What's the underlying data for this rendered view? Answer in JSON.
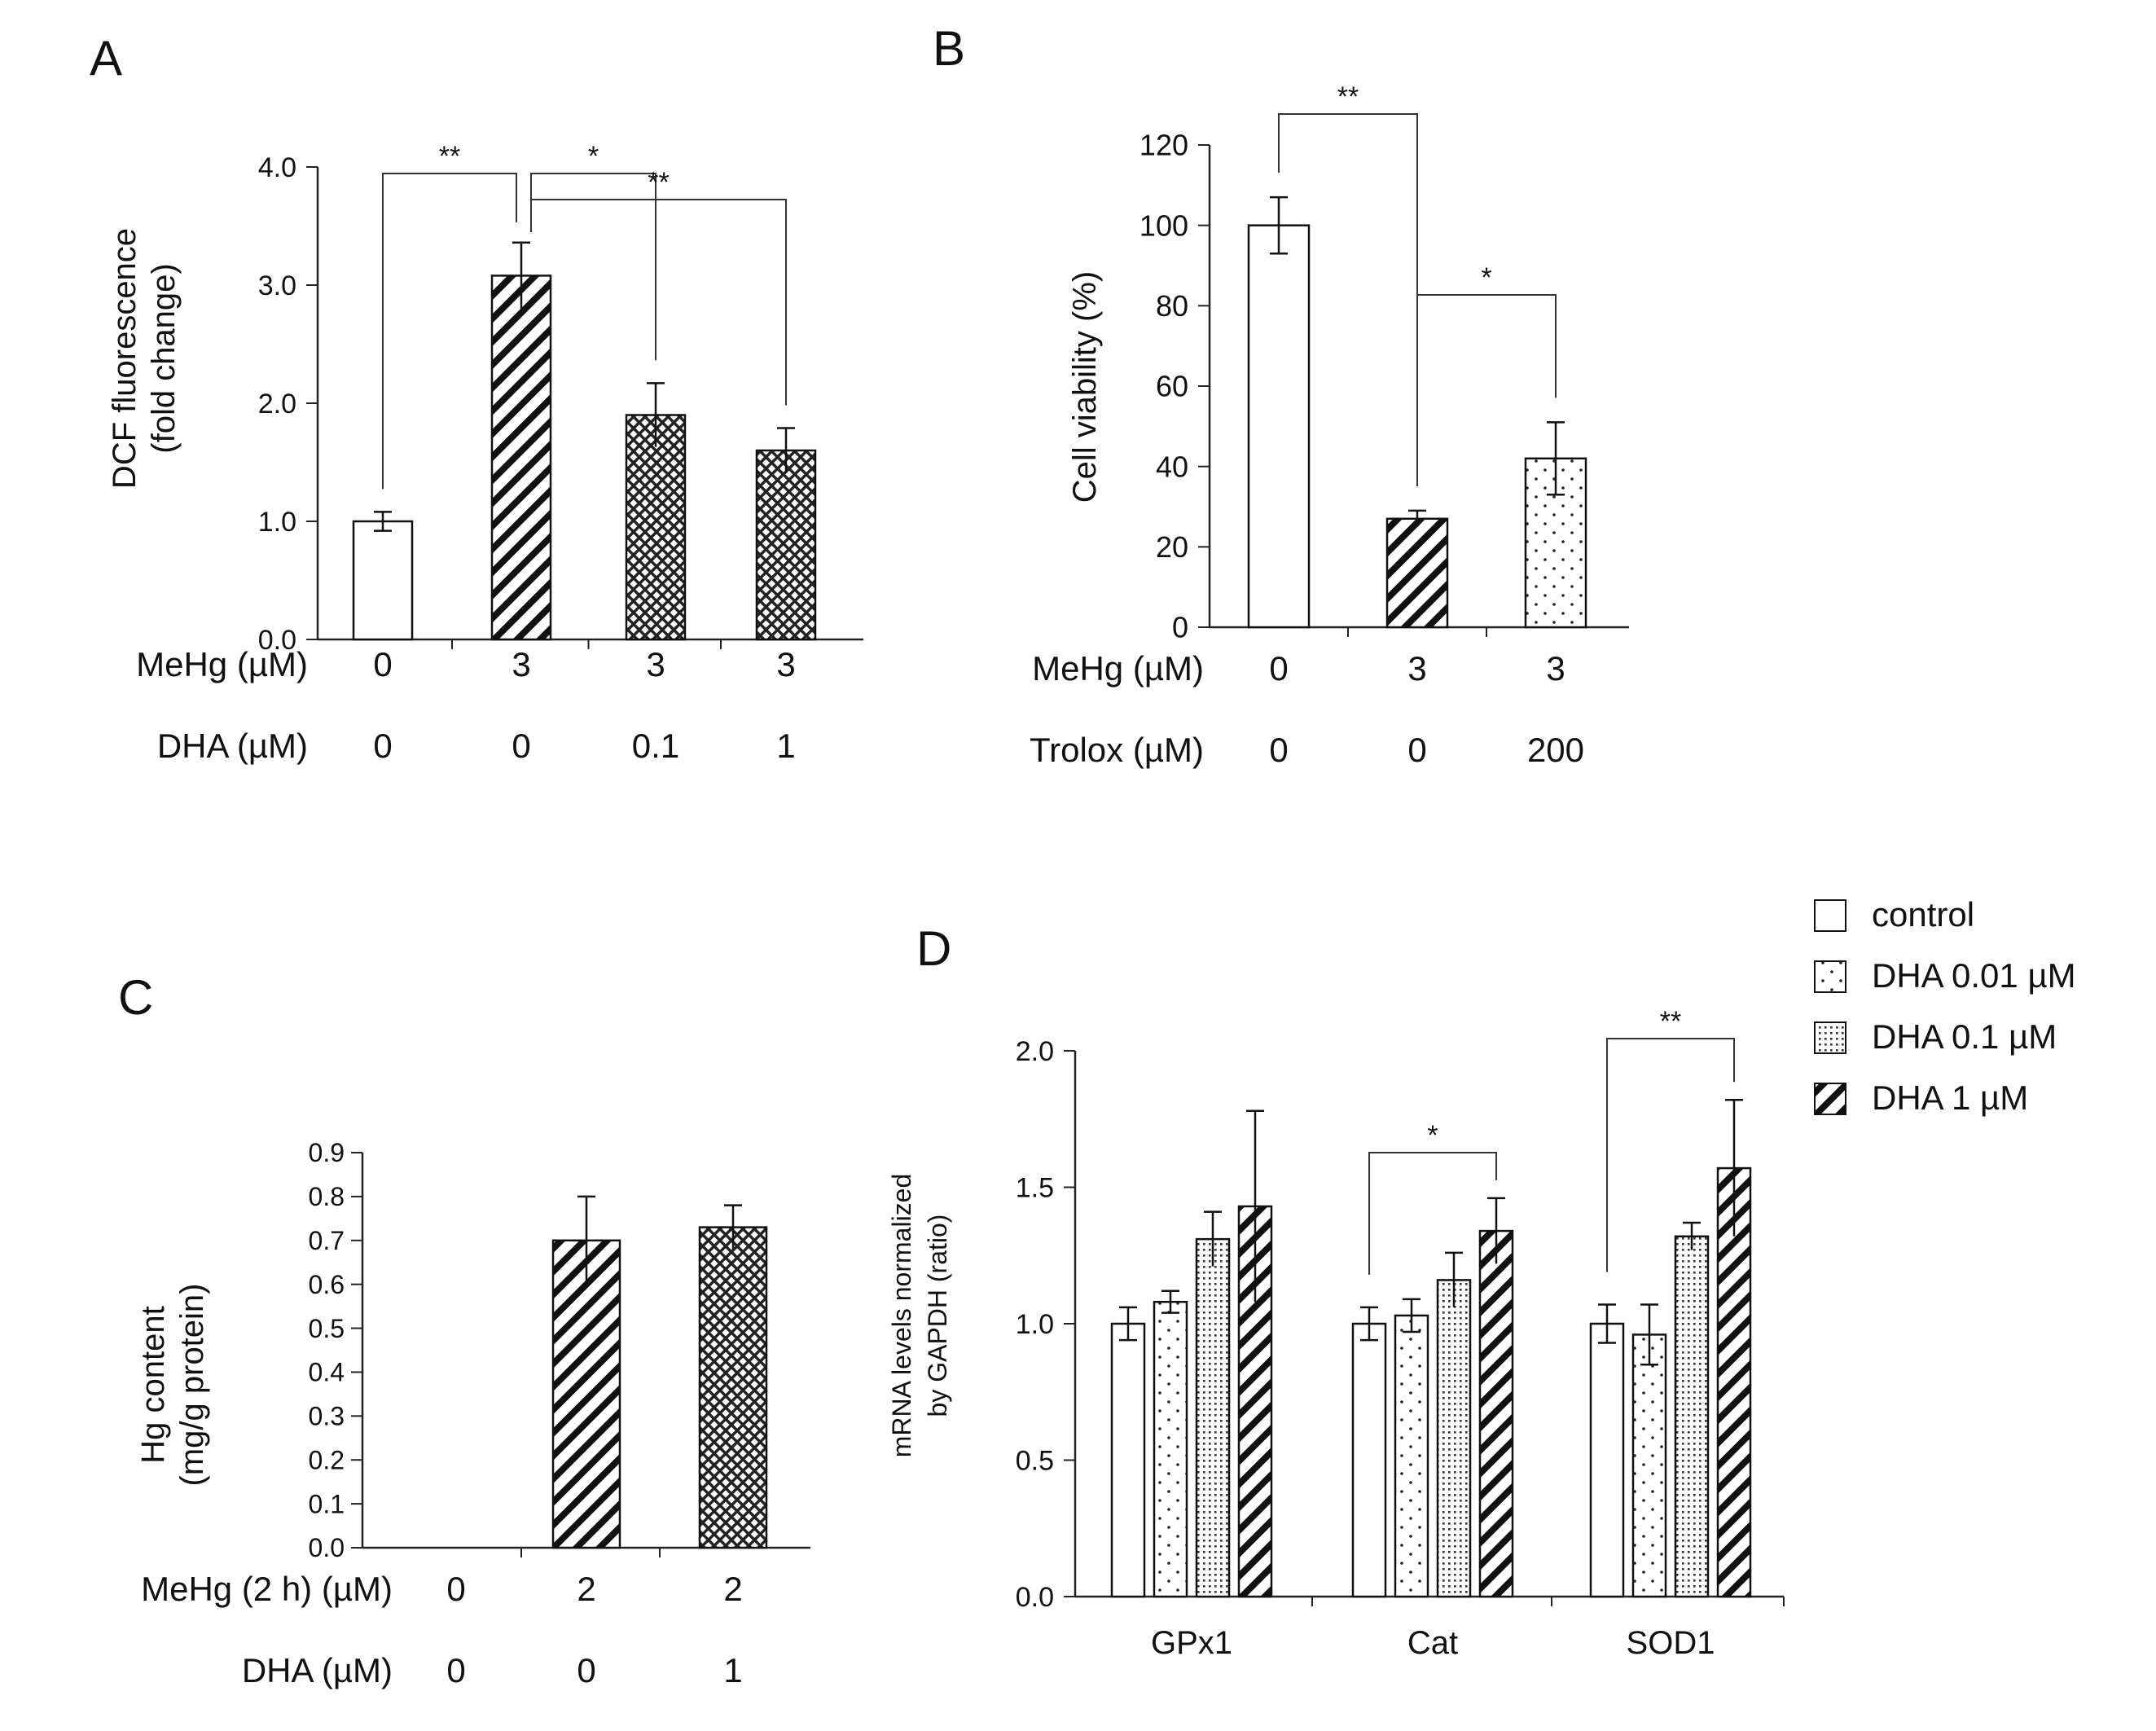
{
  "chart_data": [
    {
      "panel": "A",
      "type": "bar",
      "ylabel": [
        "DCF fluorescence",
        "(fold change)"
      ],
      "ylim": [
        0,
        4
      ],
      "yticks": [
        "0.0",
        "1.0",
        "2.0",
        "3.0",
        "4.0"
      ],
      "values": [
        1.0,
        3.08,
        1.9,
        1.6
      ],
      "errors": [
        0.08,
        0.28,
        0.27,
        0.19
      ],
      "patterns": [
        "white",
        "diag",
        "cross",
        "cross"
      ],
      "conditions": [
        {
          "label": "MeHg (µM)",
          "values": [
            "0",
            "3",
            "3",
            "3"
          ]
        },
        {
          "label": "DHA   (µM)",
          "values": [
            "0",
            "0",
            "0.1",
            "1"
          ]
        }
      ],
      "significance": [
        {
          "from": 0,
          "to": 1,
          "label": "**"
        },
        {
          "from": 1,
          "to": 2,
          "label": "*"
        },
        {
          "from": 1,
          "to": 3,
          "label": "**"
        }
      ]
    },
    {
      "panel": "B",
      "type": "bar",
      "ylabel": [
        "Cell viability (%)"
      ],
      "ylim": [
        0,
        120
      ],
      "yticks": [
        "0",
        "20",
        "40",
        "60",
        "80",
        "100",
        "120"
      ],
      "values": [
        100,
        27,
        42
      ],
      "errors": [
        7,
        2,
        9
      ],
      "patterns": [
        "white",
        "diag",
        "dots"
      ],
      "conditions": [
        {
          "label": "MeHg (µM)",
          "values": [
            "0",
            "3",
            "3"
          ]
        },
        {
          "label": "Trolox   (µM)",
          "values": [
            "0",
            "0",
            "200"
          ]
        }
      ],
      "significance": [
        {
          "from": 0,
          "to": 1,
          "label": "**"
        },
        {
          "from": 1,
          "to": 2,
          "label": "*"
        }
      ]
    },
    {
      "panel": "C",
      "type": "bar",
      "ylabel": [
        "Hg content",
        "(mg/g protein)"
      ],
      "ylim": [
        0,
        0.9
      ],
      "yticks": [
        "0.0",
        "0.1",
        "0.2",
        "0.3",
        "0.4",
        "0.5",
        "0.6",
        "0.7",
        "0.8",
        "0.9"
      ],
      "values": [
        0,
        0.7,
        0.73
      ],
      "errors": [
        0,
        0.1,
        0.05
      ],
      "patterns": [
        "white",
        "diag",
        "cross"
      ],
      "conditions": [
        {
          "label": "MeHg (2 h) (µM)",
          "values": [
            "0",
            "2",
            "2"
          ]
        },
        {
          "label": "DHA   (µM)",
          "values": [
            "0",
            "0",
            "1"
          ]
        }
      ],
      "significance": []
    },
    {
      "panel": "D",
      "type": "bar",
      "ylabel": [
        "mRNA levels normalized",
        "by GAPDH (ratio)"
      ],
      "ylim": [
        0,
        2
      ],
      "yticks": [
        "0.0",
        "0.5",
        "1.0",
        "1.5",
        "2.0"
      ],
      "categories": [
        "GPx1",
        "Cat",
        "SOD1"
      ],
      "series": [
        {
          "name": "control",
          "pattern": "white",
          "values": [
            1.0,
            1.0,
            1.0
          ],
          "errors": [
            0.06,
            0.06,
            0.07
          ]
        },
        {
          "name": "DHA 0.01 µM",
          "pattern": "dots",
          "values": [
            1.08,
            1.03,
            0.96
          ],
          "errors": [
            0.04,
            0.06,
            0.11
          ]
        },
        {
          "name": "DHA 0.1 µM",
          "pattern": "fine",
          "values": [
            1.31,
            1.16,
            1.32
          ],
          "errors": [
            0.1,
            0.1,
            0.05
          ]
        },
        {
          "name": "DHA 1 µM",
          "pattern": "diag",
          "values": [
            1.43,
            1.34,
            1.57
          ],
          "errors": [
            0.35,
            0.12,
            0.25
          ]
        }
      ],
      "significance": [
        {
          "category": 1,
          "from": 0,
          "to": 3,
          "label": "*"
        },
        {
          "category": 2,
          "from": 0,
          "to": 3,
          "label": "**"
        }
      ]
    }
  ]
}
